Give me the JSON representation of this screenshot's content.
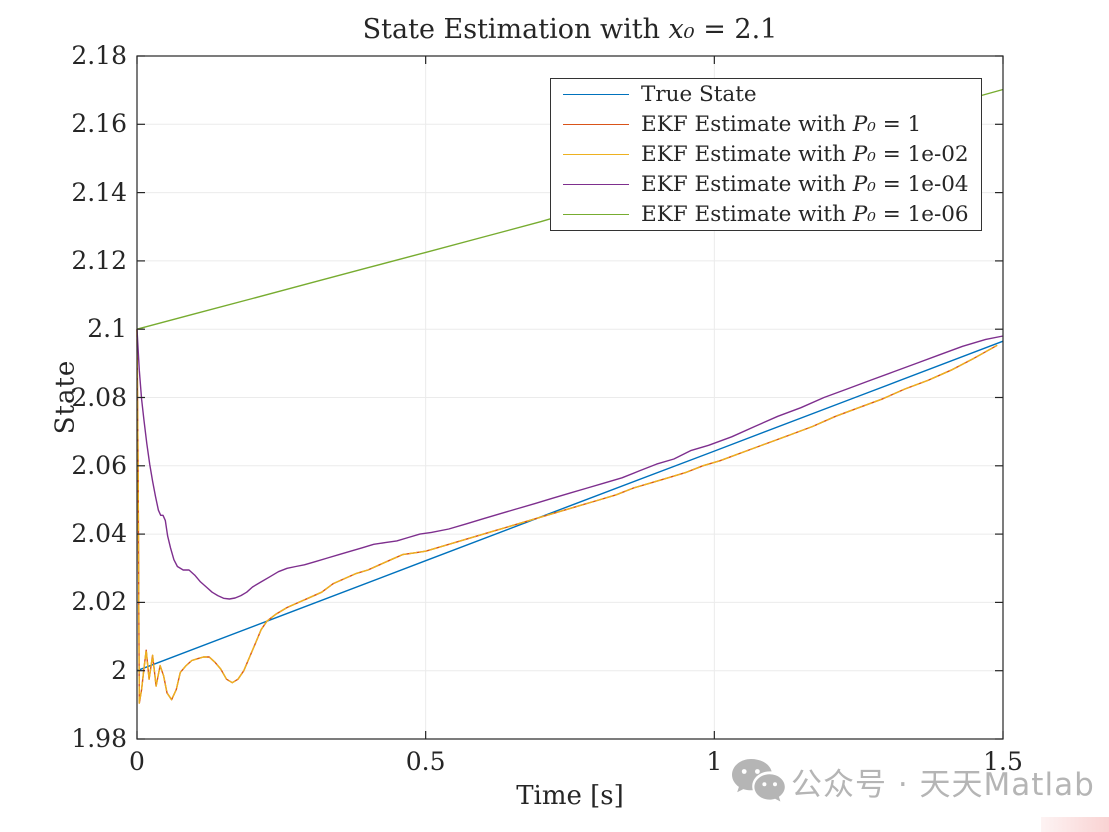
{
  "figure": {
    "title": {
      "prefix": "State Estimation with ",
      "sym": "x₀",
      "rest": " = 2.1"
    },
    "x_axis": {
      "label": "Time [s]",
      "tick_labels": [
        "0",
        "0.5",
        "1",
        "1.5"
      ],
      "tick_values": [
        0,
        0.5,
        1,
        1.5
      ]
    },
    "y_axis": {
      "label": "State",
      "tick_labels": [
        "1.98",
        "2",
        "2.02",
        "2.04",
        "2.06",
        "2.08",
        "2.1",
        "2.12",
        "2.14",
        "2.16",
        "2.18"
      ],
      "tick_values": [
        1.98,
        2.0,
        2.02,
        2.04,
        2.06,
        2.08,
        2.1,
        2.12,
        2.14,
        2.16,
        2.18
      ]
    },
    "box_color": "#262626",
    "grid_color": "#ebebeb"
  },
  "chart_data": {
    "type": "line",
    "title": "State Estimation with x₀ = 2.1",
    "xlabel": "Time [s]",
    "ylabel": "State",
    "xlim": [
      0,
      1.5
    ],
    "ylim": [
      1.98,
      2.18
    ],
    "grid": "on",
    "legend_position": "inside top, center-right",
    "series": [
      {
        "name": "True State",
        "color": "#0072BD",
        "line_style": "solid",
        "points": [
          [
            0,
            2.0
          ],
          [
            0.25,
            2.0161
          ],
          [
            0.5,
            2.0322
          ],
          [
            0.75,
            2.0483
          ],
          [
            1.0,
            2.0643
          ],
          [
            1.25,
            2.0804
          ],
          [
            1.5,
            2.0965
          ]
        ]
      },
      {
        "name": "EKF Estimate with P₀ = 1",
        "color": "#D95319",
        "line_style": "solid",
        "points": [
          [
            0,
            2.1
          ],
          [
            0.002,
            2.055
          ],
          [
            0.004,
            1.9905
          ],
          [
            0.008,
            1.9945
          ],
          [
            0.012,
            2.0005
          ],
          [
            0.016,
            2.006
          ],
          [
            0.021,
            1.9975
          ],
          [
            0.027,
            2.0045
          ],
          [
            0.033,
            1.9955
          ],
          [
            0.04,
            2.0015
          ],
          [
            0.046,
            1.9985
          ],
          [
            0.052,
            1.9935
          ],
          [
            0.06,
            1.9915
          ],
          [
            0.068,
            1.9945
          ],
          [
            0.075,
            1.9995
          ],
          [
            0.085,
            2.0015
          ],
          [
            0.095,
            2.003
          ],
          [
            0.105,
            2.0035
          ],
          [
            0.115,
            2.004
          ],
          [
            0.125,
            2.004
          ],
          [
            0.135,
            2.0025
          ],
          [
            0.145,
            2.0005
          ],
          [
            0.155,
            1.9975
          ],
          [
            0.165,
            1.9965
          ],
          [
            0.175,
            1.9975
          ],
          [
            0.185,
            2.0
          ],
          [
            0.195,
            2.004
          ],
          [
            0.205,
            2.008
          ],
          [
            0.215,
            2.012
          ],
          [
            0.225,
            2.0145
          ],
          [
            0.24,
            2.0165
          ],
          [
            0.26,
            2.0185
          ],
          [
            0.28,
            2.02
          ],
          [
            0.3,
            2.0215
          ],
          [
            0.32,
            2.023
          ],
          [
            0.34,
            2.0255
          ],
          [
            0.36,
            2.027
          ],
          [
            0.38,
            2.0285
          ],
          [
            0.4,
            2.0295
          ],
          [
            0.42,
            2.031
          ],
          [
            0.44,
            2.0325
          ],
          [
            0.46,
            2.034
          ],
          [
            0.48,
            2.0345
          ],
          [
            0.5,
            2.035
          ],
          [
            0.53,
            2.0365
          ],
          [
            0.56,
            2.038
          ],
          [
            0.59,
            2.0395
          ],
          [
            0.62,
            2.041
          ],
          [
            0.65,
            2.0425
          ],
          [
            0.68,
            2.044
          ],
          [
            0.71,
            2.0455
          ],
          [
            0.74,
            2.047
          ],
          [
            0.77,
            2.0485
          ],
          [
            0.8,
            2.05
          ],
          [
            0.83,
            2.0515
          ],
          [
            0.86,
            2.0535
          ],
          [
            0.89,
            2.055
          ],
          [
            0.92,
            2.0565
          ],
          [
            0.95,
            2.058
          ],
          [
            0.98,
            2.06
          ],
          [
            1.01,
            2.0615
          ],
          [
            1.05,
            2.064
          ],
          [
            1.09,
            2.0665
          ],
          [
            1.13,
            2.069
          ],
          [
            1.17,
            2.0715
          ],
          [
            1.21,
            2.0745
          ],
          [
            1.25,
            2.077
          ],
          [
            1.29,
            2.0795
          ],
          [
            1.33,
            2.0825
          ],
          [
            1.37,
            2.085
          ],
          [
            1.41,
            2.088
          ],
          [
            1.45,
            2.0915
          ],
          [
            1.49,
            2.0953
          ]
        ]
      },
      {
        "name": "EKF Estimate with P₀ = 1e-02",
        "color": "#EDB120",
        "line_style": "solid",
        "points_same_as": "EKF Estimate with P₀ = 1",
        "note": "curve coincides with the P₀ = 1 estimate; drawn on top of it"
      },
      {
        "name": "EKF Estimate with P₀ = 1e-04",
        "color": "#7E2F8E",
        "line_style": "solid",
        "points": [
          [
            0,
            2.1
          ],
          [
            0.004,
            2.088
          ],
          [
            0.008,
            2.0795
          ],
          [
            0.012,
            2.0735
          ],
          [
            0.017,
            2.0665
          ],
          [
            0.022,
            2.0605
          ],
          [
            0.027,
            2.0555
          ],
          [
            0.032,
            2.051
          ],
          [
            0.037,
            2.047
          ],
          [
            0.041,
            2.0455
          ],
          [
            0.045,
            2.0455
          ],
          [
            0.049,
            2.044
          ],
          [
            0.053,
            2.0395
          ],
          [
            0.058,
            2.036
          ],
          [
            0.064,
            2.0325
          ],
          [
            0.07,
            2.0305
          ],
          [
            0.08,
            2.0295
          ],
          [
            0.09,
            2.0295
          ],
          [
            0.1,
            2.028
          ],
          [
            0.11,
            2.026
          ],
          [
            0.12,
            2.0245
          ],
          [
            0.13,
            2.023
          ],
          [
            0.14,
            2.022
          ],
          [
            0.15,
            2.0212
          ],
          [
            0.16,
            2.021
          ],
          [
            0.17,
            2.0213
          ],
          [
            0.18,
            2.022
          ],
          [
            0.19,
            2.023
          ],
          [
            0.2,
            2.0245
          ],
          [
            0.215,
            2.026
          ],
          [
            0.23,
            2.0275
          ],
          [
            0.245,
            2.029
          ],
          [
            0.26,
            2.03
          ],
          [
            0.275,
            2.0305
          ],
          [
            0.29,
            2.031
          ],
          [
            0.31,
            2.032
          ],
          [
            0.33,
            2.033
          ],
          [
            0.35,
            2.034
          ],
          [
            0.37,
            2.035
          ],
          [
            0.39,
            2.036
          ],
          [
            0.41,
            2.037
          ],
          [
            0.43,
            2.0375
          ],
          [
            0.45,
            2.038
          ],
          [
            0.47,
            2.039
          ],
          [
            0.49,
            2.04
          ],
          [
            0.51,
            2.0405
          ],
          [
            0.54,
            2.0415
          ],
          [
            0.57,
            2.043
          ],
          [
            0.6,
            2.0445
          ],
          [
            0.63,
            2.046
          ],
          [
            0.66,
            2.0475
          ],
          [
            0.69,
            2.049
          ],
          [
            0.72,
            2.0505
          ],
          [
            0.75,
            2.052
          ],
          [
            0.78,
            2.0535
          ],
          [
            0.81,
            2.055
          ],
          [
            0.84,
            2.0565
          ],
          [
            0.87,
            2.0585
          ],
          [
            0.9,
            2.0605
          ],
          [
            0.93,
            2.062
          ],
          [
            0.96,
            2.0645
          ],
          [
            0.99,
            2.066
          ],
          [
            1.03,
            2.0685
          ],
          [
            1.07,
            2.0715
          ],
          [
            1.11,
            2.0745
          ],
          [
            1.15,
            2.077
          ],
          [
            1.19,
            2.08
          ],
          [
            1.23,
            2.0825
          ],
          [
            1.27,
            2.085
          ],
          [
            1.31,
            2.0875
          ],
          [
            1.35,
            2.09
          ],
          [
            1.39,
            2.0925
          ],
          [
            1.43,
            2.095
          ],
          [
            1.47,
            2.097
          ],
          [
            1.5,
            2.098
          ]
        ]
      },
      {
        "name": "EKF Estimate with P₀ = 1e-06",
        "color": "#77AC30",
        "line_style": "solid",
        "points": [
          [
            0,
            2.1
          ],
          [
            0.1,
            2.1045
          ],
          [
            0.2,
            2.109
          ],
          [
            0.3,
            2.1135
          ],
          [
            0.4,
            2.118
          ],
          [
            0.5,
            2.1225
          ],
          [
            0.6,
            2.127
          ],
          [
            0.7,
            2.1315
          ],
          [
            0.8,
            2.1365
          ],
          [
            0.9,
            2.1412
          ],
          [
            1.0,
            2.146
          ],
          [
            1.1,
            2.151
          ],
          [
            1.2,
            2.156
          ],
          [
            1.3,
            2.1608
          ],
          [
            1.4,
            2.1655
          ],
          [
            1.5,
            2.1702
          ]
        ]
      }
    ]
  },
  "legend": {
    "entries": [
      {
        "label": "True State",
        "sym": "",
        "rest": ""
      },
      {
        "label": "EKF Estimate with ",
        "sym": "P₀",
        "rest": " = 1"
      },
      {
        "label": "EKF Estimate with ",
        "sym": "P₀",
        "rest": " = 1e-02"
      },
      {
        "label": "EKF Estimate with ",
        "sym": "P₀",
        "rest": " = 1e-04"
      },
      {
        "label": "EKF Estimate with ",
        "sym": "P₀",
        "rest": " = 1e-06"
      }
    ]
  },
  "watermark": {
    "icon": "wechat-icon",
    "text": "公众号 · 天天Matlab"
  }
}
